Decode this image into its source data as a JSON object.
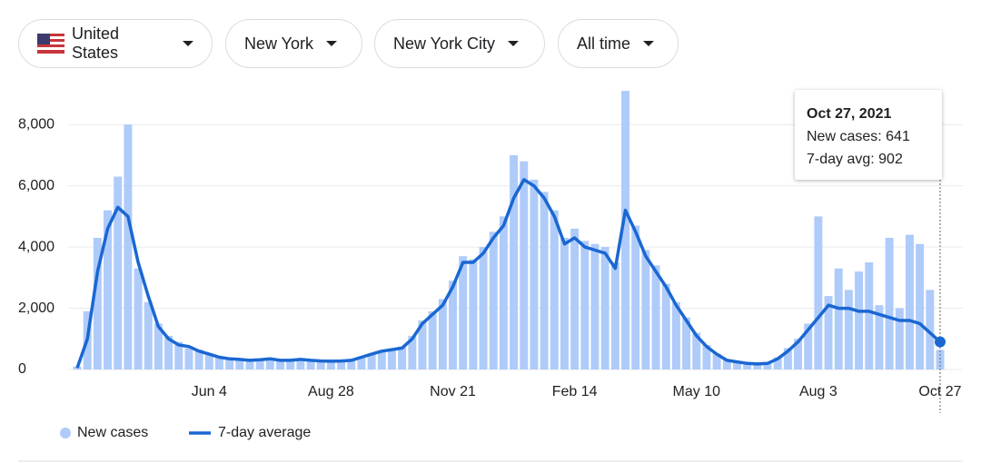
{
  "filters": [
    "United States",
    "New York",
    "New York City",
    "All time"
  ],
  "chart_data": {
    "type": "bar-line",
    "categories": [
      null,
      null,
      null,
      null,
      null,
      null,
      null,
      null,
      null,
      null,
      null,
      null,
      null,
      "Jun 4",
      null,
      null,
      null,
      null,
      null,
      null,
      null,
      null,
      null,
      null,
      null,
      "Aug 28",
      null,
      null,
      null,
      null,
      null,
      null,
      null,
      null,
      null,
      null,
      null,
      "Nov 21",
      null,
      null,
      null,
      null,
      null,
      null,
      null,
      null,
      null,
      null,
      null,
      "Feb 14",
      null,
      null,
      null,
      null,
      null,
      null,
      null,
      null,
      null,
      null,
      null,
      "May 10",
      null,
      null,
      null,
      null,
      null,
      null,
      null,
      null,
      null,
      null,
      null,
      "Aug 3",
      null,
      null,
      null,
      null,
      null,
      null,
      null,
      null,
      null,
      null,
      null,
      "Oct 27"
    ],
    "series": [
      {
        "name": "New cases",
        "color": "#aecbfa",
        "values": [
          100,
          1900,
          4300,
          5200,
          6300,
          8000,
          3300,
          2200,
          1500,
          1100,
          900,
          700,
          650,
          500,
          420,
          380,
          350,
          330,
          340,
          360,
          320,
          330,
          350,
          320,
          300,
          290,
          300,
          330,
          430,
          520,
          620,
          680,
          750,
          1100,
          1600,
          1900,
          2300,
          2900,
          3700,
          3600,
          4000,
          4500,
          5000,
          7000,
          6800,
          6200,
          5800,
          5200,
          4300,
          4600,
          4200,
          4100,
          4000,
          3500,
          9100,
          4700,
          3900,
          3400,
          2800,
          2200,
          1700,
          1200,
          800,
          520,
          320,
          260,
          210,
          190,
          220,
          400,
          700,
          1000,
          1500,
          5000,
          2400,
          3300,
          2600,
          3200,
          3500,
          2100,
          4300,
          2000,
          4400,
          4100,
          2600,
          641
        ]
      },
      {
        "name": "7-day average",
        "color": "#1a67d2",
        "values": [
          50,
          1000,
          3200,
          4600,
          5300,
          5000,
          3500,
          2400,
          1400,
          1000,
          800,
          750,
          600,
          500,
          400,
          350,
          330,
          300,
          320,
          350,
          300,
          300,
          330,
          300,
          280,
          270,
          280,
          300,
          400,
          500,
          600,
          650,
          700,
          1000,
          1500,
          1800,
          2100,
          2700,
          3500,
          3500,
          3800,
          4300,
          4700,
          5600,
          6200,
          6000,
          5600,
          5000,
          4100,
          4300,
          4000,
          3900,
          3800,
          3300,
          5200,
          4500,
          3700,
          3200,
          2700,
          2100,
          1600,
          1100,
          750,
          500,
          300,
          250,
          200,
          180,
          200,
          350,
          600,
          900,
          1300,
          1700,
          2100,
          2000,
          2000,
          1900,
          1900,
          1800,
          1700,
          1600,
          1600,
          1500,
          1200,
          902
        ]
      }
    ],
    "ylim": [
      0,
      9400
    ],
    "yticks": [
      0,
      {
        "value": 2000,
        "label": "2,000"
      },
      {
        "value": 4000,
        "label": "4,000"
      },
      {
        "value": 6000,
        "label": "6,000"
      },
      {
        "value": 8000,
        "label": "8,000"
      }
    ],
    "grid": true,
    "tooltip": {
      "title": "Oct 27, 2021",
      "lines": [
        "New cases: 641",
        "7-day avg: 902"
      ]
    }
  }
}
